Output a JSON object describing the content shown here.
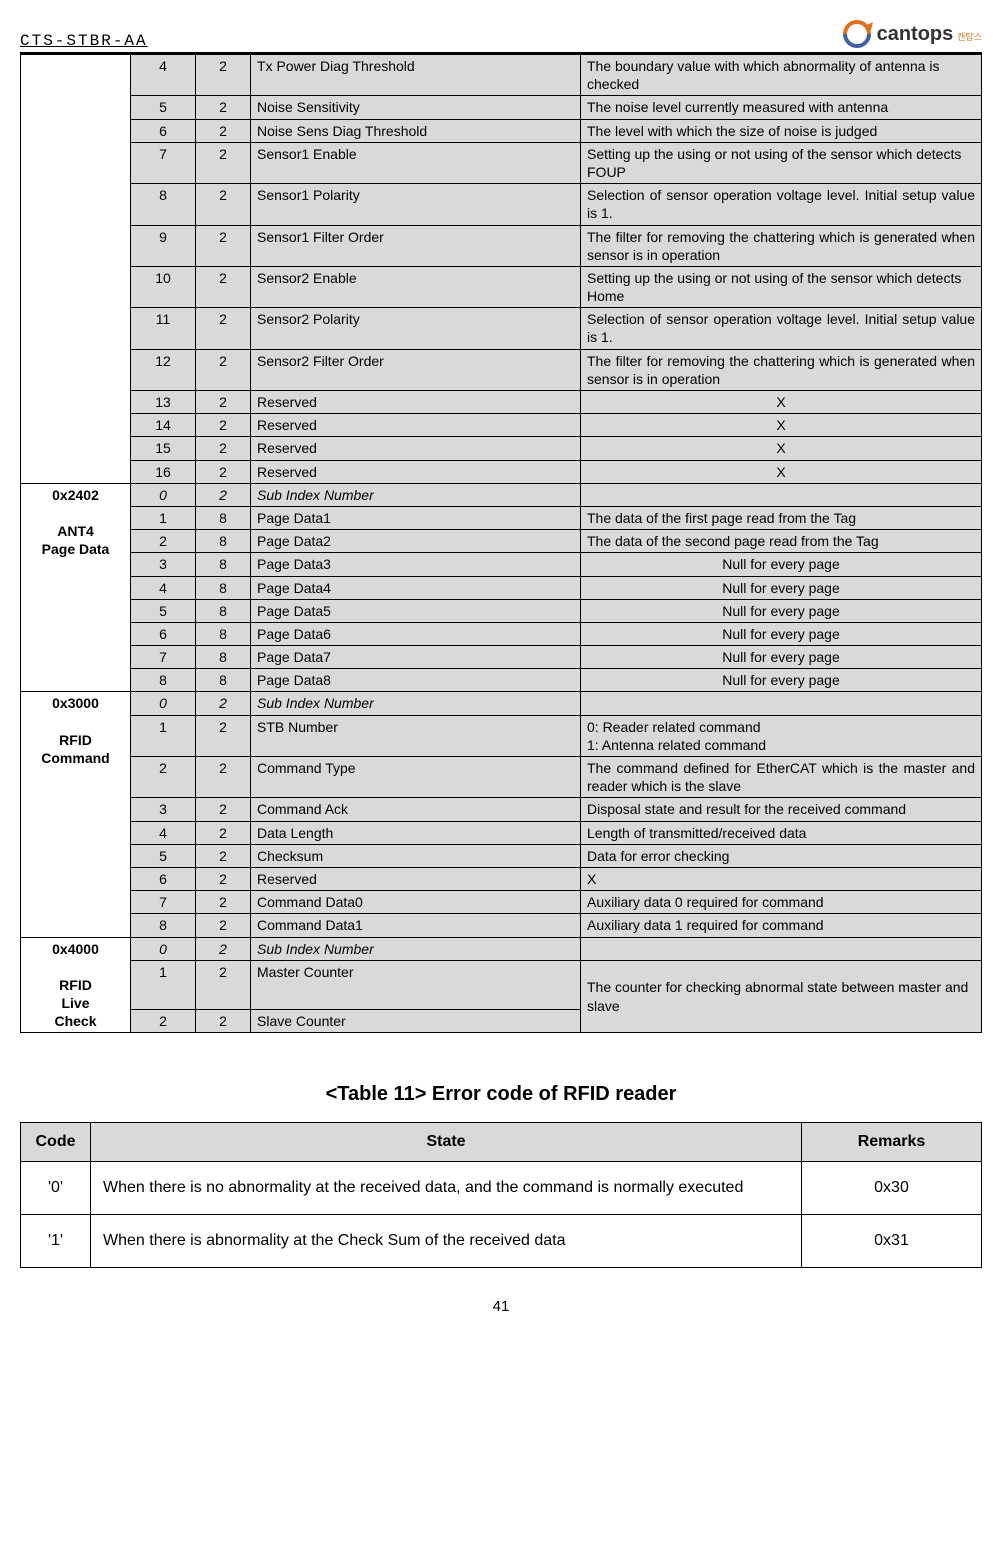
{
  "header": {
    "doc_id": "CTS-STBR-AA",
    "logo_text": "cantops",
    "logo_sub": "캔탑스"
  },
  "table1": {
    "groups": [
      {
        "label": "",
        "rowspan": 13,
        "rows": [
          {
            "idx": "4",
            "sz": "2",
            "name": "Tx Power Diag Threshold",
            "desc": "The boundary value with which abnormality of antenna is checked",
            "align": "left"
          },
          {
            "idx": "5",
            "sz": "2",
            "name": "Noise Sensitivity",
            "desc": "The noise level currently measured with antenna",
            "align": "left"
          },
          {
            "idx": "6",
            "sz": "2",
            "name": "Noise Sens Diag Threshold",
            "desc": "The level with which the size of noise is judged",
            "align": "left"
          },
          {
            "idx": "7",
            "sz": "2",
            "name": "Sensor1 Enable",
            "desc": "Setting up the using or not using of the sensor which detects FOUP",
            "align": "left"
          },
          {
            "idx": "8",
            "sz": "2",
            "name": "Sensor1 Polarity",
            "desc": "Selection of sensor operation voltage level. Initial setup value is 1.",
            "align": "justify"
          },
          {
            "idx": "9",
            "sz": "2",
            "name": "Sensor1 Filter Order",
            "desc": "The filter for removing the chattering which is generated when sensor is in operation",
            "align": "justify"
          },
          {
            "idx": "10",
            "sz": "2",
            "name": "Sensor2 Enable",
            "desc": "Setting up the using or not using of the sensor which detects Home",
            "align": "left"
          },
          {
            "idx": "11",
            "sz": "2",
            "name": "Sensor2 Polarity",
            "desc": "Selection of sensor operation voltage level. Initial setup value is 1.",
            "align": "justify"
          },
          {
            "idx": "12",
            "sz": "2",
            "name": "Sensor2 Filter Order",
            "desc": "The filter for removing the chattering which is generated when sensor is in operation",
            "align": "justify"
          },
          {
            "idx": "13",
            "sz": "2",
            "name": "Reserved",
            "desc": "X",
            "align": "center"
          },
          {
            "idx": "14",
            "sz": "2",
            "name": "Reserved",
            "desc": "X",
            "align": "center"
          },
          {
            "idx": "15",
            "sz": "2",
            "name": "Reserved",
            "desc": "X",
            "align": "center"
          },
          {
            "idx": "16",
            "sz": "2",
            "name": "Reserved",
            "desc": "X",
            "align": "center"
          }
        ]
      },
      {
        "label": "0x2402\n\nANT4\nPage Data",
        "rowspan": 9,
        "rows": [
          {
            "idx": "0",
            "sz": "2",
            "name": "Sub Index Number",
            "desc": "",
            "align": "left",
            "italic": true
          },
          {
            "idx": "1",
            "sz": "8",
            "name": "Page Data1",
            "desc": "The data of the first page read from the Tag",
            "align": "left"
          },
          {
            "idx": "2",
            "sz": "8",
            "name": "Page Data2",
            "desc": "The data of the second page read from the Tag",
            "align": "left"
          },
          {
            "idx": "3",
            "sz": "8",
            "name": "Page Data3",
            "desc": "Null for every page",
            "align": "center"
          },
          {
            "idx": "4",
            "sz": "8",
            "name": "Page Data4",
            "desc": "Null for every page",
            "align": "center"
          },
          {
            "idx": "5",
            "sz": "8",
            "name": "Page Data5",
            "desc": "Null for every page",
            "align": "center"
          },
          {
            "idx": "6",
            "sz": "8",
            "name": "Page Data6",
            "desc": "Null for every page",
            "align": "center"
          },
          {
            "idx": "7",
            "sz": "8",
            "name": "Page Data7",
            "desc": "Null for every page",
            "align": "center"
          },
          {
            "idx": "8",
            "sz": "8",
            "name": "Page Data8",
            "desc": "Null for every page",
            "align": "center"
          }
        ]
      },
      {
        "label": "0x3000\n\nRFID\nCommand",
        "rowspan": 9,
        "rows": [
          {
            "idx": "0",
            "sz": "2",
            "name": "Sub Index Number",
            "desc": "",
            "align": "left",
            "italic": true
          },
          {
            "idx": "1",
            "sz": "2",
            "name": "STB Number",
            "desc": "0: Reader related command\n1: Antenna related command",
            "align": "left"
          },
          {
            "idx": "2",
            "sz": "2",
            "name": "Command Type",
            "desc": "The command defined for EtherCAT which is the master and reader which is the slave",
            "align": "justify"
          },
          {
            "idx": "3",
            "sz": "2",
            "name": "Command Ack",
            "desc": "Disposal state and result for the received command",
            "align": "justify"
          },
          {
            "idx": "4",
            "sz": "2",
            "name": "Data Length",
            "desc": "Length of transmitted/received data",
            "align": "left"
          },
          {
            "idx": "5",
            "sz": "2",
            "name": "Checksum",
            "desc": "Data for error checking",
            "align": "left"
          },
          {
            "idx": "6",
            "sz": "2",
            "name": "Reserved",
            "desc": "X",
            "align": "left"
          },
          {
            "idx": "7",
            "sz": "2",
            "name": "Command Data0",
            "desc": "Auxiliary data 0 required for command",
            "align": "left"
          },
          {
            "idx": "8",
            "sz": "2",
            "name": "Command Data1",
            "desc": "Auxiliary data 1 required for command",
            "align": "left"
          }
        ]
      },
      {
        "label": "0x4000\n\nRFID\nLive\nCheck",
        "rowspan": 3,
        "rows_special": [
          {
            "idx": "0",
            "sz": "2",
            "name": "Sub Index Number",
            "desc": "",
            "align": "left",
            "italic": true
          },
          {
            "idx": "1",
            "sz": "2",
            "name": "Master Counter",
            "merge_desc_below": true
          },
          {
            "idx": "2",
            "sz": "2",
            "name": "Slave Counter",
            "desc": "The counter for checking abnormal state between master and slave",
            "align": "left",
            "desc_rowspan": 2
          }
        ]
      }
    ]
  },
  "table2": {
    "title": "<Table 11> Error code of RFID reader",
    "headers": [
      "Code",
      "State",
      "Remarks"
    ],
    "rows": [
      {
        "code": "'0'",
        "state": "When there is no abnormality at the received data, and the command is normally executed",
        "remarks": "0x30"
      },
      {
        "code": "'1'",
        "state": "When there is abnormality at the Check Sum of the received data",
        "remarks": "0x31"
      }
    ]
  },
  "page_number": "41"
}
